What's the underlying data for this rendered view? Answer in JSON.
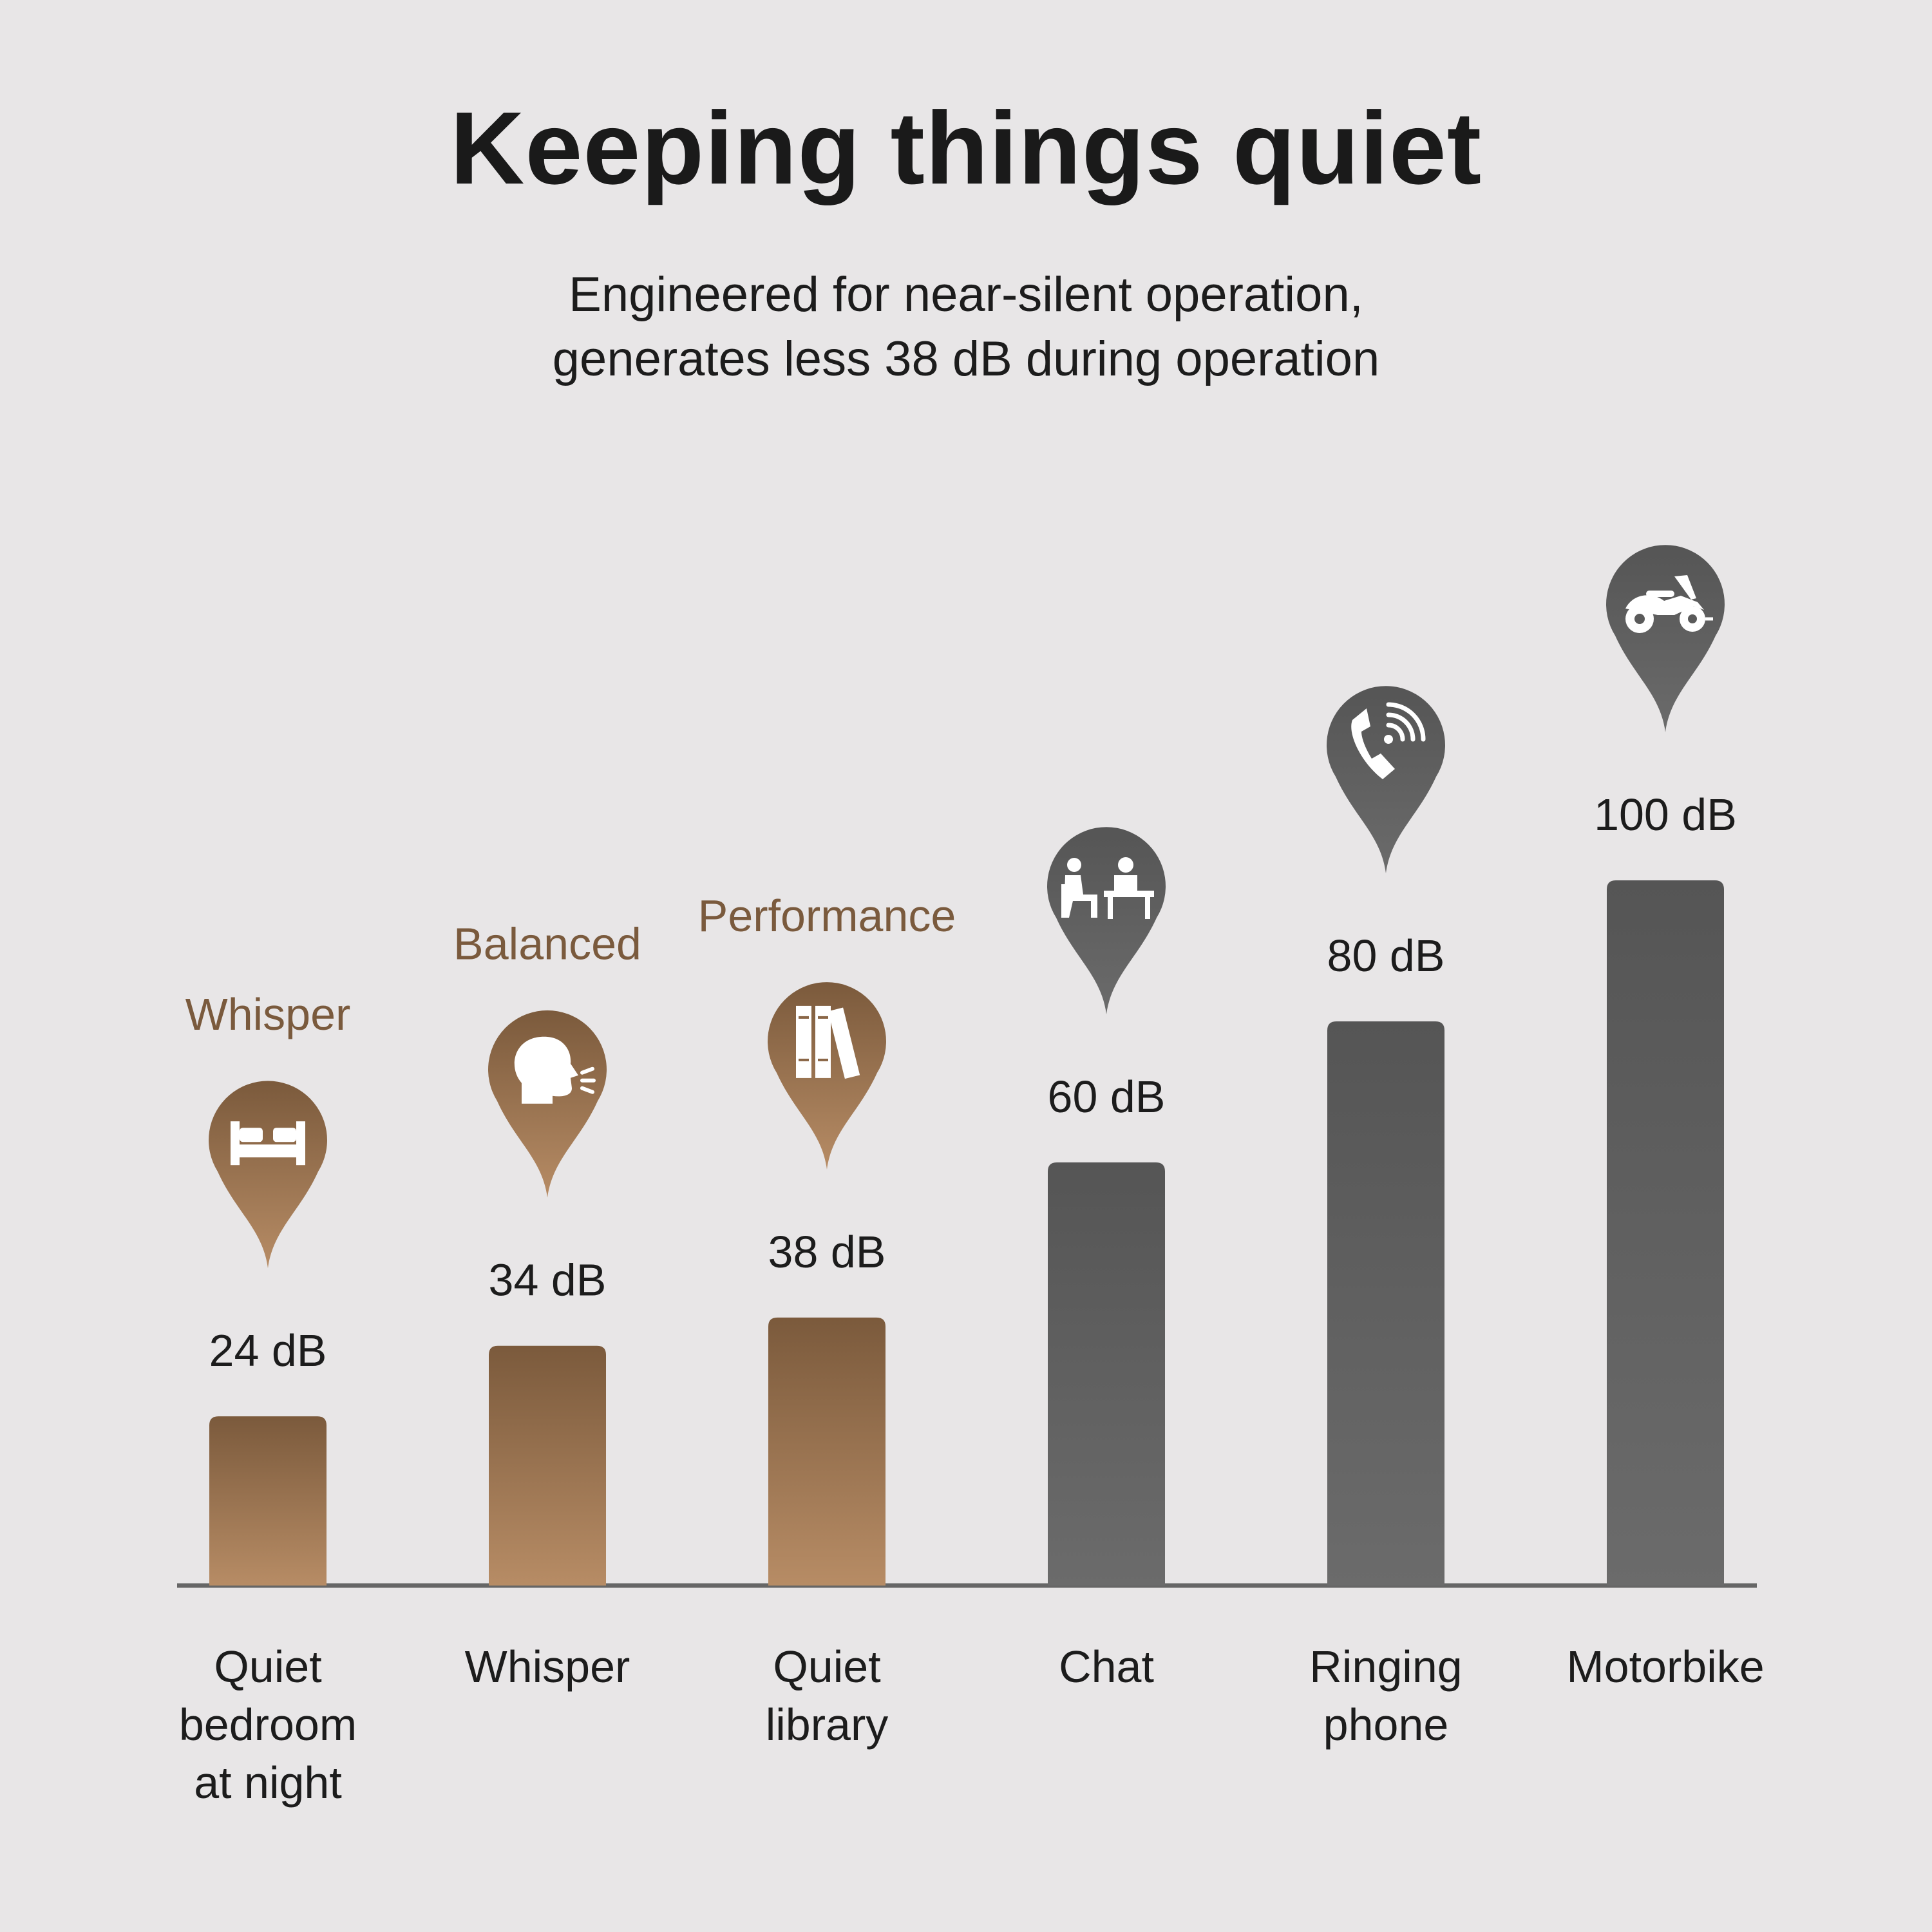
{
  "header": {
    "title": "Keeping things quiet",
    "subtitle_lines": [
      "Engineered for near-silent operation,",
      "generates less 38 dB during operation"
    ]
  },
  "colors": {
    "background": "#e8e6e7",
    "brand_top": "#7b5a3c",
    "brand_bottom": "#b78c65",
    "gray_top": "#555555",
    "gray_bottom": "#6b6b6b",
    "mode_label": "#7a5a3d",
    "text": "#1c1c1c",
    "baseline": "#666666"
  },
  "chart_data": {
    "type": "bar",
    "categories": [
      [
        "Quiet",
        "bedroom",
        "at night"
      ],
      [
        "Whisper"
      ],
      [
        "Quiet",
        "library"
      ],
      [
        "Chat"
      ],
      [
        "Ringing",
        "phone"
      ],
      [
        "Motorbike"
      ]
    ],
    "values": [
      24,
      34,
      38,
      60,
      80,
      100
    ],
    "value_labels": [
      "24 dB",
      "34 dB",
      "38 dB",
      "60 dB",
      "80 dB",
      "100 dB"
    ],
    "unit": "dB",
    "ylim": [
      0,
      100
    ],
    "grid": false,
    "mode_labels": [
      "Whisper",
      "Balanced",
      "Performance",
      "",
      "",
      ""
    ],
    "icons": [
      "bed-icon",
      "speaking-head-icon",
      "books-icon",
      "conversation-icon",
      "ringing-phone-icon",
      "motorbike-icon"
    ],
    "highlight": [
      true,
      true,
      true,
      false,
      false,
      false
    ]
  }
}
